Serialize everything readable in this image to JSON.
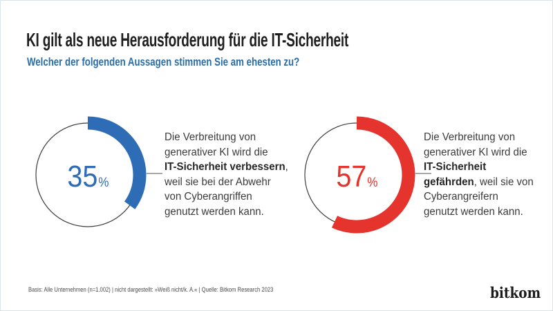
{
  "header": {
    "title": "KI gilt als neue Herausforderung für die IT-Sicherheit",
    "subtitle": "Welcher der folgenden Aussagen stimmen Sie am ehesten zu?"
  },
  "chart_data": {
    "type": "pie",
    "variant": "donut-pair",
    "unit": "%",
    "title": "KI gilt als neue Herausforderung für die IT-Sicherheit",
    "question": "Welcher der folgenden Aussagen stimmen Sie am ehesten zu?",
    "ring_color": "#3c3c3c",
    "connector_color": "#a9a9a9",
    "grid": false,
    "items": [
      {
        "value": 35,
        "color": "#2e6db5",
        "label": "IT-Sicherheit verbessern",
        "statement": "Die Verbreitung von generativer KI wird die IT-Sicherheit verbessern, weil sie bei der Abwehr von Cyberangriffen genutzt werden kann."
      },
      {
        "value": 57,
        "color": "#e5332d",
        "label": "IT-Sicherheit gefährden",
        "statement": "Die Verbreitung von generativer KI wird die IT-Sicherheit gefährden, weil sie von Cyberangreifern genutzt werden kann."
      }
    ]
  },
  "statements": [
    {
      "lines": [
        [
          {
            "t": "Die Verbreitung von"
          }
        ],
        [
          {
            "t": "generativer KI wird die"
          }
        ],
        [
          {
            "t": "IT-Sicherheit verbessern",
            "b": 1
          },
          {
            "t": ","
          }
        ],
        [
          {
            "t": "weil sie bei der Abwehr"
          }
        ],
        [
          {
            "t": "von Cyberangriffen"
          }
        ],
        [
          {
            "t": "genutzt werden kann."
          }
        ]
      ]
    },
    {
      "lines": [
        [
          {
            "t": "Die Verbreitung von"
          }
        ],
        [
          {
            "t": "generativer KI wird die"
          }
        ],
        [
          {
            "t": "IT-Sicherheit",
            "b": 1
          }
        ],
        [
          {
            "t": "gefährden",
            "b": 1
          },
          {
            "t": ", weil sie von"
          }
        ],
        [
          {
            "t": "Cyberangreifern"
          }
        ],
        [
          {
            "t": "genutzt werden kann."
          }
        ]
      ]
    }
  ],
  "footer": {
    "note": "Basis: Alle Unternehmen (n=1.002) | nicht dargestellt: »Weiß nicht/k. A.« | Quelle: Bitkom Research 2023",
    "logo_text": "bitkom"
  }
}
